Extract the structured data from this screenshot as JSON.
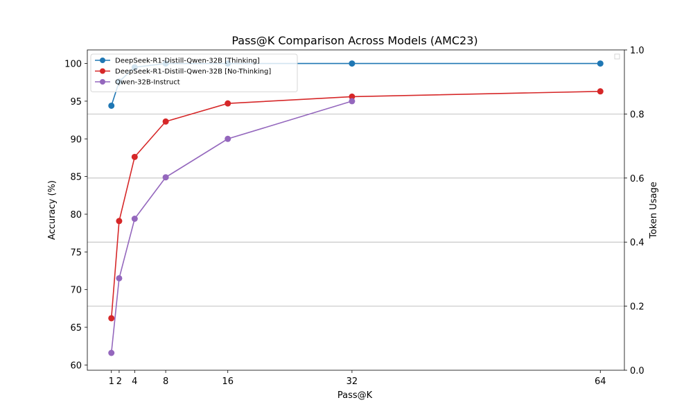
{
  "chart_data": {
    "type": "line",
    "title": "Pass@K Comparison Across Models (AMC23)",
    "xlabel": "Pass@K",
    "ylabel": "Accuracy (%)",
    "y2label": "Token Usage",
    "x": [
      1,
      2,
      4,
      8,
      16,
      32,
      64
    ],
    "xticks": [
      1,
      2,
      4,
      8,
      16,
      32,
      64
    ],
    "xlim": [
      -2.1,
      67.1
    ],
    "ylim": [
      59.3,
      101.8
    ],
    "yticks": [
      60,
      65,
      70,
      75,
      80,
      85,
      90,
      95,
      100
    ],
    "y2lim": [
      0.0,
      1.0
    ],
    "y2ticks": [
      "0.0",
      "0.2",
      "0.4",
      "0.6",
      "0.8",
      "1.0"
    ],
    "grid": "right-axis horizontal",
    "legend_placement": "upper-left",
    "series": [
      {
        "name": "DeepSeek-R1-Distill-Qwen-32B [Thinking]",
        "color": "#1f77b4",
        "values": [
          94.4,
          97.6,
          99.5,
          100,
          100,
          100,
          100
        ]
      },
      {
        "name": "DeepSeek-R1-Distill-Qwen-32B [No-Thinking]",
        "color": "#d62728",
        "values": [
          66.2,
          79.1,
          87.6,
          92.3,
          94.7,
          95.6,
          96.3
        ]
      },
      {
        "name": "Qwen-32B-Instruct",
        "color": "#9467bd",
        "values": [
          61.6,
          71.5,
          79.4,
          84.9,
          90.0,
          95.0,
          null
        ]
      }
    ]
  }
}
